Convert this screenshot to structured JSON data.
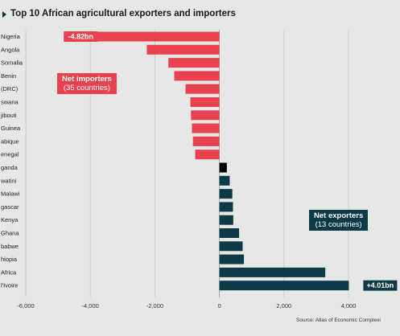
{
  "title": "Top 10 African agricultural exporters and importers",
  "source": "Source: Atlas of Economic Complexi",
  "colors": {
    "importer": "#e8414f",
    "exporter": "#0d3a48",
    "neutral": "#000000",
    "grid": "#c8cbc8",
    "zero_line": "#9aa09a"
  },
  "annotations": {
    "importers": {
      "title": "Net importers",
      "subtitle": "(35 countries)"
    },
    "exporters": {
      "title": "Net exporters",
      "subtitle": "(13 countries)"
    }
  },
  "chart_data": {
    "type": "bar",
    "orientation": "horizontal",
    "xlim": [
      -6000,
      4000
    ],
    "x_ticks": [
      -6000,
      -4000,
      -2000,
      0,
      2000,
      4000
    ],
    "x_tick_labels": [
      "-6,000",
      "-4,000",
      "-2,000",
      "0",
      "2,000",
      "4,000"
    ],
    "grid": true,
    "categories": [
      "Nigeria",
      "Angola",
      "Somalia",
      "Benin",
      "(DRC)",
      "swana",
      "jibouti",
      "Guinea",
      "abique",
      "enegal",
      "ganda",
      "watini",
      "Malawi",
      "gascar",
      "Kenya",
      "Ghana",
      "babwe",
      "hiopia",
      "Africa",
      "l'Ivoire"
    ],
    "values": [
      -4820,
      -2250,
      -1580,
      -1400,
      -1050,
      -900,
      -880,
      -850,
      -820,
      -750,
      230,
      320,
      400,
      420,
      430,
      610,
      720,
      760,
      3280,
      4010
    ],
    "data_labels": {
      "0": "-4.82bn",
      "19": "+4.01bn"
    }
  }
}
